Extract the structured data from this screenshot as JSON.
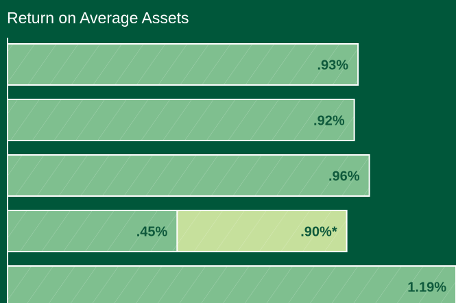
{
  "chart_data": {
    "type": "bar",
    "orientation": "horizontal",
    "title": "Return on Average Assets",
    "categories": [
      null,
      null,
      null,
      null,
      null
    ],
    "xlim": [
      0,
      1.19
    ],
    "background": "#00573a",
    "hatch": true,
    "series": [
      {
        "color": "#7fbf8f",
        "values": [
          0.93,
          0.92,
          0.96,
          0.45,
          1.19
        ],
        "value_labels": [
          ".93%",
          ".92%",
          ".96%",
          ".45%",
          "1.19%"
        ]
      },
      {
        "color": "#c6e09c",
        "values": [
          null,
          null,
          null,
          0.9,
          null
        ],
        "value_labels": [
          null,
          null,
          null,
          ".90%*",
          null
        ]
      }
    ]
  }
}
